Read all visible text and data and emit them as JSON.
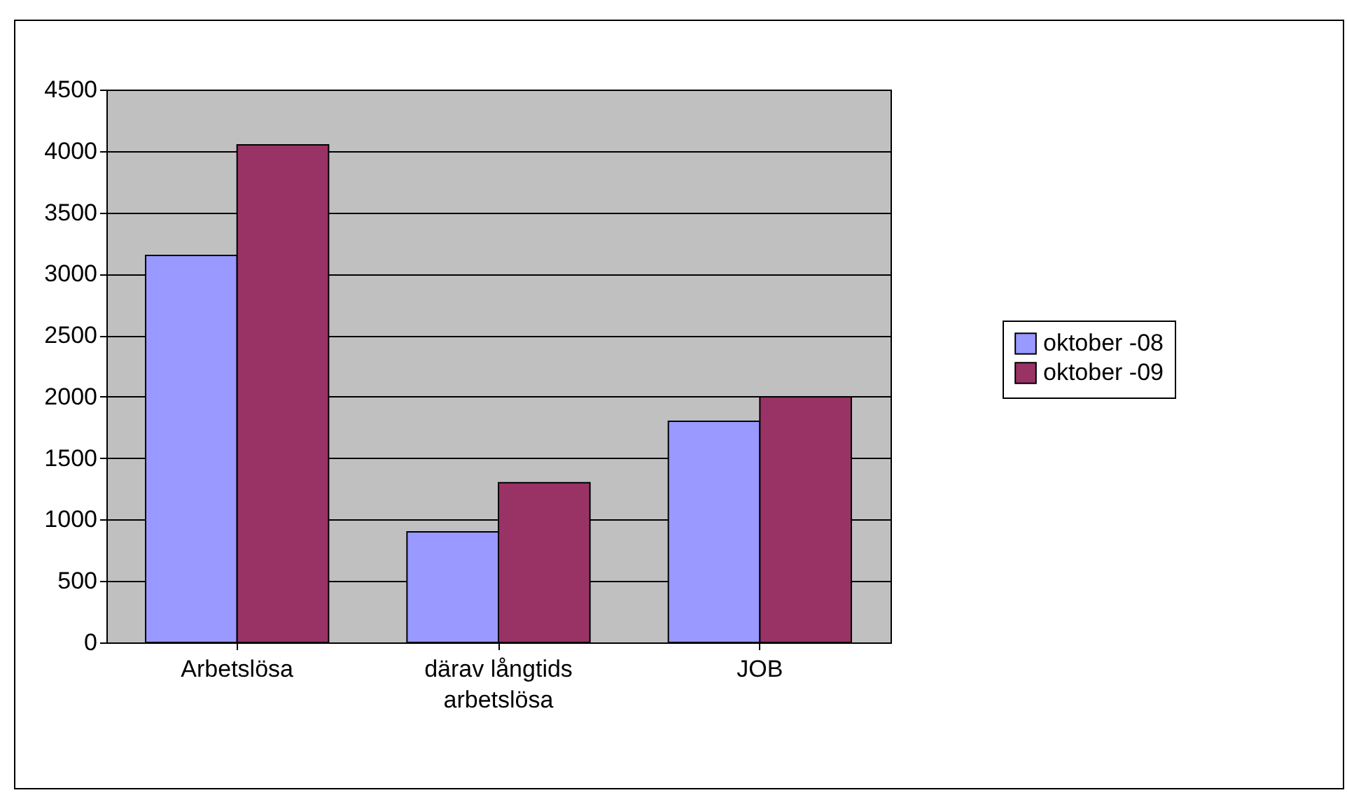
{
  "chart_data": {
    "type": "bar",
    "categories": [
      "Arbetslösa",
      "därav långtids arbetslösa",
      "JOB"
    ],
    "series": [
      {
        "name": "oktober -08",
        "color": "#9999ff",
        "values": [
          3150,
          900,
          1800
        ]
      },
      {
        "name": "oktober -09",
        "color": "#993366",
        "values": [
          4050,
          1300,
          2000
        ]
      }
    ],
    "ylim": [
      0,
      4500
    ],
    "yticks": [
      0,
      500,
      1000,
      1500,
      2000,
      2500,
      3000,
      3500,
      4000,
      4500
    ],
    "grid": "y",
    "legend": "right"
  }
}
